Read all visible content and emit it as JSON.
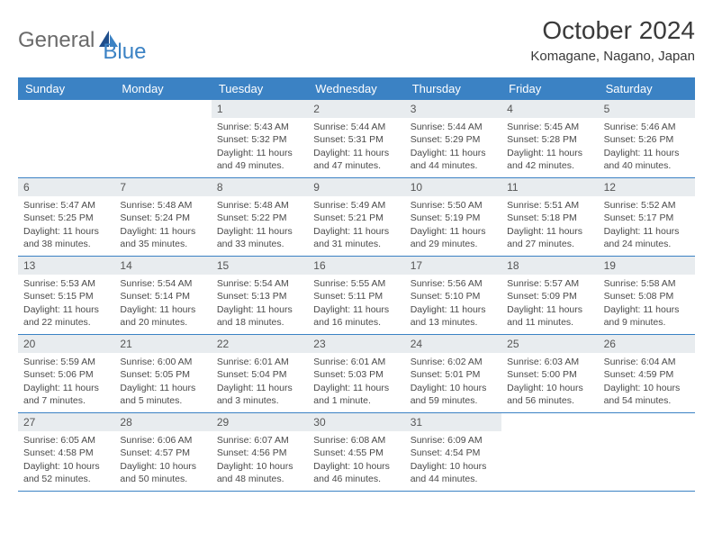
{
  "logo": {
    "text1": "General",
    "text2": "Blue"
  },
  "title": "October 2024",
  "subtitle": "Komagane, Nagano, Japan",
  "colors": {
    "header_bg": "#3b82c4",
    "header_fg": "#ffffff",
    "daynum_bg": "#e8ecef",
    "row_border": "#3b82c4"
  },
  "weekdays": [
    "Sunday",
    "Monday",
    "Tuesday",
    "Wednesday",
    "Thursday",
    "Friday",
    "Saturday"
  ],
  "weeks": [
    [
      {
        "day": "",
        "sunrise": "",
        "sunset": "",
        "daylight": ""
      },
      {
        "day": "",
        "sunrise": "",
        "sunset": "",
        "daylight": ""
      },
      {
        "day": "1",
        "sunrise": "Sunrise: 5:43 AM",
        "sunset": "Sunset: 5:32 PM",
        "daylight": "Daylight: 11 hours and 49 minutes."
      },
      {
        "day": "2",
        "sunrise": "Sunrise: 5:44 AM",
        "sunset": "Sunset: 5:31 PM",
        "daylight": "Daylight: 11 hours and 47 minutes."
      },
      {
        "day": "3",
        "sunrise": "Sunrise: 5:44 AM",
        "sunset": "Sunset: 5:29 PM",
        "daylight": "Daylight: 11 hours and 44 minutes."
      },
      {
        "day": "4",
        "sunrise": "Sunrise: 5:45 AM",
        "sunset": "Sunset: 5:28 PM",
        "daylight": "Daylight: 11 hours and 42 minutes."
      },
      {
        "day": "5",
        "sunrise": "Sunrise: 5:46 AM",
        "sunset": "Sunset: 5:26 PM",
        "daylight": "Daylight: 11 hours and 40 minutes."
      }
    ],
    [
      {
        "day": "6",
        "sunrise": "Sunrise: 5:47 AM",
        "sunset": "Sunset: 5:25 PM",
        "daylight": "Daylight: 11 hours and 38 minutes."
      },
      {
        "day": "7",
        "sunrise": "Sunrise: 5:48 AM",
        "sunset": "Sunset: 5:24 PM",
        "daylight": "Daylight: 11 hours and 35 minutes."
      },
      {
        "day": "8",
        "sunrise": "Sunrise: 5:48 AM",
        "sunset": "Sunset: 5:22 PM",
        "daylight": "Daylight: 11 hours and 33 minutes."
      },
      {
        "day": "9",
        "sunrise": "Sunrise: 5:49 AM",
        "sunset": "Sunset: 5:21 PM",
        "daylight": "Daylight: 11 hours and 31 minutes."
      },
      {
        "day": "10",
        "sunrise": "Sunrise: 5:50 AM",
        "sunset": "Sunset: 5:19 PM",
        "daylight": "Daylight: 11 hours and 29 minutes."
      },
      {
        "day": "11",
        "sunrise": "Sunrise: 5:51 AM",
        "sunset": "Sunset: 5:18 PM",
        "daylight": "Daylight: 11 hours and 27 minutes."
      },
      {
        "day": "12",
        "sunrise": "Sunrise: 5:52 AM",
        "sunset": "Sunset: 5:17 PM",
        "daylight": "Daylight: 11 hours and 24 minutes."
      }
    ],
    [
      {
        "day": "13",
        "sunrise": "Sunrise: 5:53 AM",
        "sunset": "Sunset: 5:15 PM",
        "daylight": "Daylight: 11 hours and 22 minutes."
      },
      {
        "day": "14",
        "sunrise": "Sunrise: 5:54 AM",
        "sunset": "Sunset: 5:14 PM",
        "daylight": "Daylight: 11 hours and 20 minutes."
      },
      {
        "day": "15",
        "sunrise": "Sunrise: 5:54 AM",
        "sunset": "Sunset: 5:13 PM",
        "daylight": "Daylight: 11 hours and 18 minutes."
      },
      {
        "day": "16",
        "sunrise": "Sunrise: 5:55 AM",
        "sunset": "Sunset: 5:11 PM",
        "daylight": "Daylight: 11 hours and 16 minutes."
      },
      {
        "day": "17",
        "sunrise": "Sunrise: 5:56 AM",
        "sunset": "Sunset: 5:10 PM",
        "daylight": "Daylight: 11 hours and 13 minutes."
      },
      {
        "day": "18",
        "sunrise": "Sunrise: 5:57 AM",
        "sunset": "Sunset: 5:09 PM",
        "daylight": "Daylight: 11 hours and 11 minutes."
      },
      {
        "day": "19",
        "sunrise": "Sunrise: 5:58 AM",
        "sunset": "Sunset: 5:08 PM",
        "daylight": "Daylight: 11 hours and 9 minutes."
      }
    ],
    [
      {
        "day": "20",
        "sunrise": "Sunrise: 5:59 AM",
        "sunset": "Sunset: 5:06 PM",
        "daylight": "Daylight: 11 hours and 7 minutes."
      },
      {
        "day": "21",
        "sunrise": "Sunrise: 6:00 AM",
        "sunset": "Sunset: 5:05 PM",
        "daylight": "Daylight: 11 hours and 5 minutes."
      },
      {
        "day": "22",
        "sunrise": "Sunrise: 6:01 AM",
        "sunset": "Sunset: 5:04 PM",
        "daylight": "Daylight: 11 hours and 3 minutes."
      },
      {
        "day": "23",
        "sunrise": "Sunrise: 6:01 AM",
        "sunset": "Sunset: 5:03 PM",
        "daylight": "Daylight: 11 hours and 1 minute."
      },
      {
        "day": "24",
        "sunrise": "Sunrise: 6:02 AM",
        "sunset": "Sunset: 5:01 PM",
        "daylight": "Daylight: 10 hours and 59 minutes."
      },
      {
        "day": "25",
        "sunrise": "Sunrise: 6:03 AM",
        "sunset": "Sunset: 5:00 PM",
        "daylight": "Daylight: 10 hours and 56 minutes."
      },
      {
        "day": "26",
        "sunrise": "Sunrise: 6:04 AM",
        "sunset": "Sunset: 4:59 PM",
        "daylight": "Daylight: 10 hours and 54 minutes."
      }
    ],
    [
      {
        "day": "27",
        "sunrise": "Sunrise: 6:05 AM",
        "sunset": "Sunset: 4:58 PM",
        "daylight": "Daylight: 10 hours and 52 minutes."
      },
      {
        "day": "28",
        "sunrise": "Sunrise: 6:06 AM",
        "sunset": "Sunset: 4:57 PM",
        "daylight": "Daylight: 10 hours and 50 minutes."
      },
      {
        "day": "29",
        "sunrise": "Sunrise: 6:07 AM",
        "sunset": "Sunset: 4:56 PM",
        "daylight": "Daylight: 10 hours and 48 minutes."
      },
      {
        "day": "30",
        "sunrise": "Sunrise: 6:08 AM",
        "sunset": "Sunset: 4:55 PM",
        "daylight": "Daylight: 10 hours and 46 minutes."
      },
      {
        "day": "31",
        "sunrise": "Sunrise: 6:09 AM",
        "sunset": "Sunset: 4:54 PM",
        "daylight": "Daylight: 10 hours and 44 minutes."
      },
      {
        "day": "",
        "sunrise": "",
        "sunset": "",
        "daylight": ""
      },
      {
        "day": "",
        "sunrise": "",
        "sunset": "",
        "daylight": ""
      }
    ]
  ]
}
